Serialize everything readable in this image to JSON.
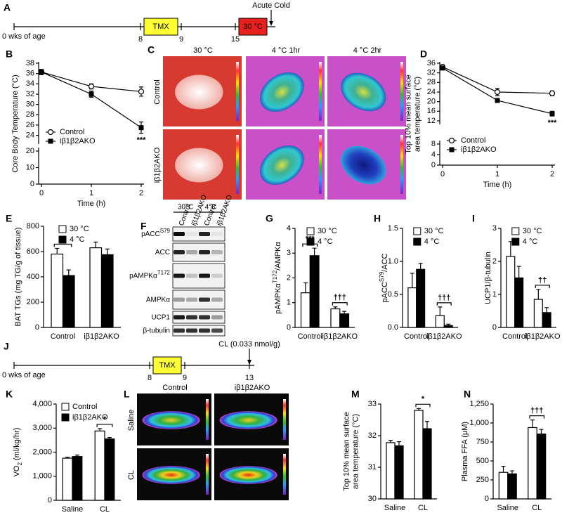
{
  "timelines": [
    {
      "letter": "A",
      "start_label": "0 wks of age",
      "ticks": [
        "8",
        "9",
        "15"
      ],
      "box": "TMX",
      "cold_box": "30 °C",
      "arrow_label": "Acute Cold"
    },
    {
      "letter": "J",
      "start_label": "0 wks of age",
      "ticks": [
        "8",
        "9",
        "13"
      ],
      "box": "TMX",
      "arrow_label": "CL (0.033 nmol/g)"
    }
  ],
  "thermal_images": [
    {
      "letter": "C",
      "columns": [
        "30 °C",
        "4 °C 1hr",
        "4 °C 2hr"
      ],
      "rows": [
        "Control",
        "iβ1β2AKO"
      ]
    },
    {
      "letter": "L",
      "columns": [
        "Control",
        "iβ1β2AKO"
      ],
      "rows": [
        "Saline",
        "CL"
      ]
    }
  ],
  "blot": {
    "letter": "F",
    "groups": [
      "30°C",
      "4°C"
    ],
    "lanes": [
      "Control",
      "iβ1β2AKO",
      "Control",
      "iβ1β2AKO"
    ],
    "rows": [
      [
        {
          "text": "pACC"
        },
        {
          "text": "S79",
          "sup": true
        }
      ],
      [
        {
          "text": "ACC"
        }
      ],
      [
        {
          "text": "pAMPKα"
        },
        {
          "text": "T172",
          "sup": true
        }
      ],
      [
        {
          "text": "AMPKα"
        }
      ],
      [
        {
          "text": "UCP1"
        }
      ],
      [
        {
          "text": "β-tubulin"
        }
      ]
    ]
  },
  "chart_data": [
    {
      "letter": "B",
      "type": "line",
      "ylabel": [
        [
          {
            "text": "Core Body Temperature (°C)"
          }
        ]
      ],
      "xlabel": "Time (h)",
      "x": [
        0,
        1,
        2
      ],
      "xlim": [
        0,
        2
      ],
      "xticks": [
        0,
        1,
        2
      ],
      "ylim": [
        23,
        38
      ],
      "yticks": [
        24,
        26,
        28,
        30,
        32,
        34,
        36,
        38
      ],
      "ylim_lower": [
        0,
        20
      ],
      "yticks_lower": [
        0,
        10,
        20
      ],
      "legend": "lower left",
      "series": [
        {
          "name": "Control",
          "marker": "open",
          "values": [
            36.3,
            33.5,
            32.5
          ],
          "errors": [
            0.5,
            0.5,
            0.9
          ]
        },
        {
          "name": "iβ1β2AKO",
          "marker": "filled",
          "values": [
            36.3,
            32,
            25.5
          ],
          "errors": [
            0.5,
            0.6,
            1.1
          ]
        }
      ],
      "annotations": [
        {
          "text": "***",
          "x": 2
        }
      ]
    },
    {
      "letter": "D",
      "type": "line",
      "ylabel": [
        [
          {
            "text": "Top 10% mean surface"
          }
        ],
        [
          {
            "text": "area temperature (°C)"
          }
        ]
      ],
      "xlabel": "Time (h)",
      "x": [
        0,
        1,
        2
      ],
      "xlim": [
        0,
        2
      ],
      "xticks": [
        0,
        1,
        2
      ],
      "ylim": [
        12,
        36
      ],
      "yticks": [
        12,
        16,
        20,
        24,
        28,
        32,
        36
      ],
      "ylim_lower": [
        0,
        8
      ],
      "yticks_lower": [
        0,
        4,
        8
      ],
      "legend": "lower left",
      "series": [
        {
          "name": "Control",
          "marker": "open",
          "values": [
            34.5,
            24,
            23.5
          ],
          "errors": [
            0.8,
            1.5,
            1
          ]
        },
        {
          "name": "iβ1β2AKO",
          "marker": "filled",
          "values": [
            34,
            20.5,
            15
          ],
          "errors": [
            0.8,
            0.8,
            1
          ]
        }
      ],
      "annotations": [
        {
          "text": "***",
          "x": 2
        }
      ]
    },
    {
      "letter": "E",
      "type": "bar",
      "ylabel": [
        [
          {
            "text": "BAT TGs (mg TG/g of tissue)"
          }
        ]
      ],
      "categories": [
        "Control",
        "iβ1β2AKO"
      ],
      "ylim": [
        0,
        800
      ],
      "yticks": [
        0,
        200,
        400,
        600,
        800
      ],
      "legend": "upper right",
      "series": [
        {
          "name": "30 °C",
          "color": "#ffffff",
          "values": [
            580,
            630
          ],
          "errors": [
            45,
            45
          ]
        },
        {
          "name": "4 °C",
          "color": "#000000",
          "values": [
            410,
            575
          ],
          "errors": [
            45,
            45
          ]
        }
      ],
      "annotations": [
        {
          "text": "*",
          "category": 0
        }
      ]
    },
    {
      "letter": "G",
      "type": "bar",
      "ylabel": [
        [
          {
            "text": "pAMPKα"
          },
          {
            "text": "T172",
            "sup": true
          },
          {
            "text": "/AMPKα"
          }
        ]
      ],
      "categories": [
        "Control",
        "iβ1β2AKO"
      ],
      "ylim": [
        0,
        4
      ],
      "yticks": [
        0,
        1,
        2,
        3,
        4
      ],
      "legend": "upper right",
      "series": [
        {
          "name": "30 °C",
          "color": "#ffffff",
          "values": [
            1.4,
            0.75
          ],
          "errors": [
            0.4,
            0.08
          ]
        },
        {
          "name": "4 °C",
          "color": "#000000",
          "values": [
            2.9,
            0.55
          ],
          "errors": [
            0.3,
            0.1
          ]
        }
      ],
      "annotations": [
        {
          "text": "***",
          "category": 0
        },
        {
          "text": "†††",
          "category": 1
        }
      ]
    },
    {
      "letter": "H",
      "type": "bar",
      "ylabel": [
        [
          {
            "text": "pACC"
          },
          {
            "text": "S79",
            "sup": true
          },
          {
            "text": "/ACC"
          }
        ]
      ],
      "categories": [
        "Control",
        "iβ1β2AKO"
      ],
      "ylim": [
        0,
        1.5
      ],
      "yticks": [
        {
          "value": 0,
          "label": "0.0"
        },
        0.5,
        {
          "value": 1,
          "label": "1.0"
        },
        1.5
      ],
      "legend": "upper right",
      "series": [
        {
          "name": "30 °C",
          "color": "#ffffff",
          "values": [
            0.6,
            0.18
          ],
          "errors": [
            0.22,
            0.13
          ]
        },
        {
          "name": "4 °C",
          "color": "#000000",
          "values": [
            0.88,
            0.03
          ],
          "errors": [
            0.09,
            0.02
          ]
        }
      ],
      "annotations": [
        {
          "text": "†††",
          "category": 1
        }
      ]
    },
    {
      "letter": "I",
      "type": "bar",
      "ylabel": [
        [
          {
            "text": "UCP1/β-tubulin"
          }
        ]
      ],
      "categories": [
        "Control",
        "iβ1β2AKO"
      ],
      "ylim": [
        0,
        3
      ],
      "yticks": [
        0,
        1,
        2,
        3
      ],
      "legend": "upper right",
      "series": [
        {
          "name": "30 °C",
          "color": "#ffffff",
          "values": [
            2.15,
            0.85
          ],
          "errors": [
            0.45,
            0.3
          ]
        },
        {
          "name": "4 °C",
          "color": "#000000",
          "values": [
            1.5,
            0.45
          ],
          "errors": [
            0.35,
            0.15
          ]
        }
      ],
      "annotations": [
        {
          "text": "††",
          "category": 1
        }
      ]
    },
    {
      "letter": "K",
      "type": "bar",
      "ylabel": [
        [
          {
            "text": "VO"
          },
          {
            "text": "2",
            "sub": true
          },
          {
            "text": " (ml/kg/hr)"
          }
        ]
      ],
      "categories": [
        "Saline",
        "CL"
      ],
      "ylim": [
        0,
        4000
      ],
      "yticks": [
        0,
        {
          "value": 1000,
          "label": "1,000"
        },
        {
          "value": 2000,
          "label": "2,000"
        },
        {
          "value": 3000,
          "label": "3,000"
        },
        {
          "value": 4000,
          "label": "4,000"
        }
      ],
      "legend": "upper left",
      "series": [
        {
          "name": "Control",
          "color": "#ffffff",
          "values": [
            1750,
            2880
          ],
          "errors": [
            40,
            100
          ]
        },
        {
          "name": "iβ1β2AKO",
          "color": "#000000",
          "values": [
            1820,
            2550
          ],
          "errors": [
            60,
            60
          ]
        }
      ],
      "annotations": [
        {
          "text": "*",
          "category": 1
        }
      ]
    },
    {
      "letter": "M",
      "type": "bar",
      "ylabel": [
        [
          {
            "text": "Top 10% mean surface"
          }
        ],
        [
          {
            "text": "area temperature (°C)"
          }
        ]
      ],
      "categories": [
        "Saline",
        "CL"
      ],
      "ylim": [
        30,
        33
      ],
      "yticks": [
        30,
        31,
        32,
        33
      ],
      "series": [
        {
          "color": "#ffffff",
          "values": [
            31.78,
            32.8
          ],
          "errors": [
            0.07,
            0.06
          ]
        },
        {
          "color": "#000000",
          "values": [
            31.68,
            32.22
          ],
          "errors": [
            0.13,
            0.23
          ]
        }
      ],
      "annotations": [
        {
          "text": "*",
          "category": 1
        }
      ]
    },
    {
      "letter": "N",
      "type": "bar",
      "ylabel": [
        [
          {
            "text": "Plasma FFA (μM)"
          }
        ]
      ],
      "categories": [
        "Saline",
        "CL"
      ],
      "ylim": [
        0,
        1250
      ],
      "yticks": [
        0,
        250,
        500,
        750,
        {
          "value": 1000,
          "label": "1,000"
        },
        {
          "value": 1250,
          "label": "1,250"
        }
      ],
      "series": [
        {
          "color": "#ffffff",
          "values": [
            350,
            940
          ],
          "errors": [
            80,
            100
          ]
        },
        {
          "color": "#000000",
          "values": [
            330,
            855
          ],
          "errors": [
            40,
            60
          ]
        }
      ],
      "annotations": [
        {
          "text": "†††",
          "category": 1
        }
      ]
    }
  ]
}
